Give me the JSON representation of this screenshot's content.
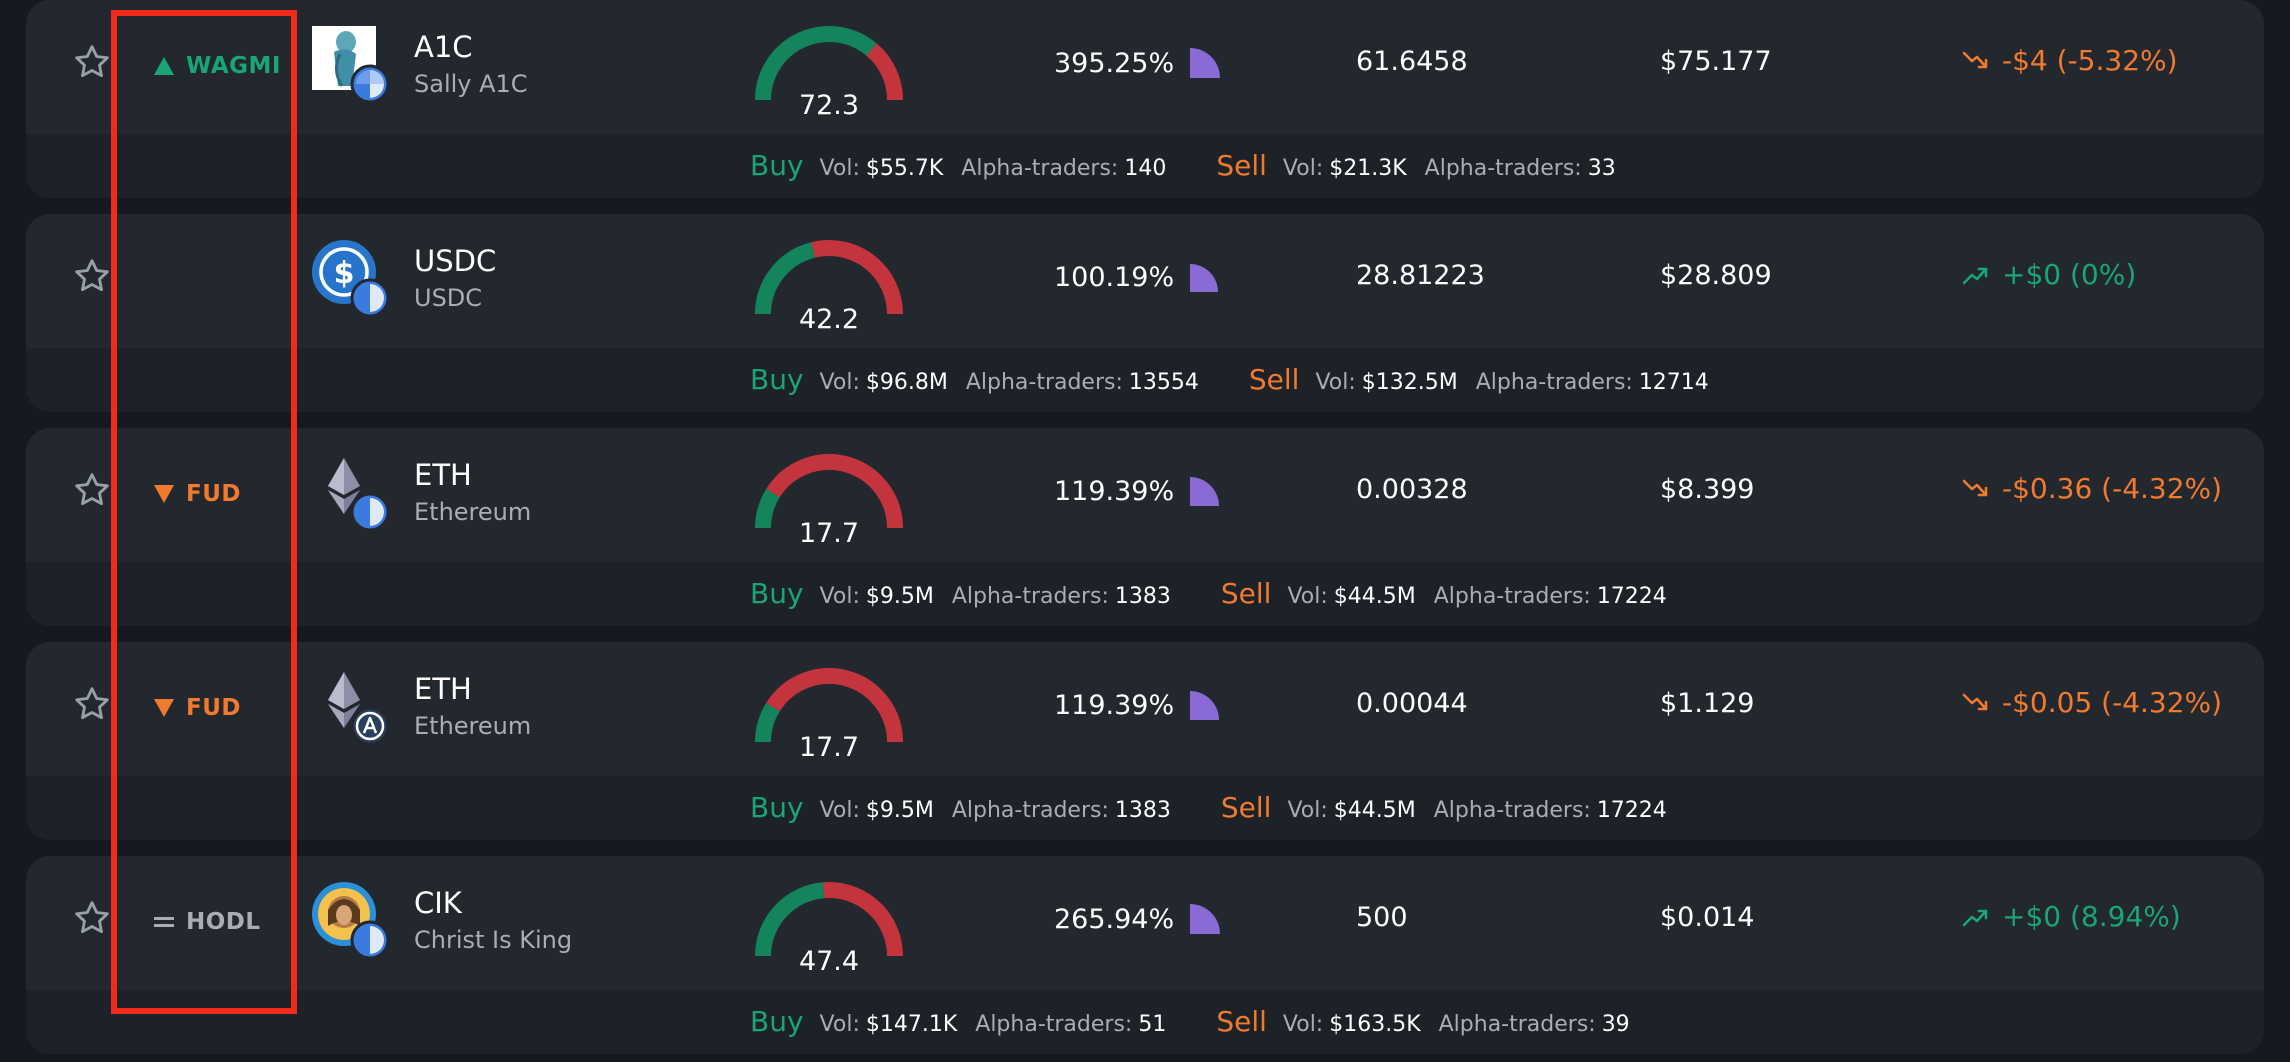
{
  "colors": {
    "green": "#1aa576",
    "orange": "#f07a2e",
    "gauge_green": "#13845c",
    "gauge_red": "#c3343d",
    "pie_purple": "#8a6bd6",
    "highlight": "#f12b1a"
  },
  "rows": [
    {
      "signal": {
        "label": "WAGMI",
        "kind": "up",
        "icon": "triangle-up-icon"
      },
      "coin": {
        "symbol": "A1C",
        "name": "Sally A1C",
        "icon": "sally-avatar-icon"
      },
      "score": {
        "value": "72.3",
        "level": 0.723
      },
      "percent": {
        "value": "395.25%",
        "pie_fraction": 0.25
      },
      "quantity": "61.6458",
      "price": "$75.177",
      "change": {
        "text": "-$4 (-5.32%)",
        "direction": "down"
      },
      "buy": {
        "label": "Buy",
        "vol_label": "Vol:",
        "vol": "$55.7K",
        "traders_label": "Alpha-traders:",
        "traders": "140"
      },
      "sell": {
        "label": "Sell",
        "vol_label": "Vol:",
        "vol": "$21.3K",
        "traders_label": "Alpha-traders:",
        "traders": "33"
      }
    },
    {
      "signal": {
        "label": "",
        "kind": "none",
        "icon": ""
      },
      "coin": {
        "symbol": "USDC",
        "name": "USDC",
        "icon": "usdc-icon"
      },
      "score": {
        "value": "42.2",
        "level": 0.422
      },
      "percent": {
        "value": "100.19%",
        "pie_fraction": 0.2
      },
      "quantity": "28.81223",
      "price": "$28.809",
      "change": {
        "text": "+$0 (0%)",
        "direction": "up"
      },
      "buy": {
        "label": "Buy",
        "vol_label": "Vol:",
        "vol": "$96.8M",
        "traders_label": "Alpha-traders:",
        "traders": "13554"
      },
      "sell": {
        "label": "Sell",
        "vol_label": "Vol:",
        "vol": "$132.5M",
        "traders_label": "Alpha-traders:",
        "traders": "12714"
      }
    },
    {
      "signal": {
        "label": "FUD",
        "kind": "down",
        "icon": "triangle-down-icon"
      },
      "coin": {
        "symbol": "ETH",
        "name": "Ethereum",
        "icon": "ethereum-icon"
      },
      "score": {
        "value": "17.7",
        "level": 0.177
      },
      "percent": {
        "value": "119.39%",
        "pie_fraction": 0.22
      },
      "quantity": "0.00328",
      "price": "$8.399",
      "change": {
        "text": "-$0.36 (-4.32%)",
        "direction": "down"
      },
      "buy": {
        "label": "Buy",
        "vol_label": "Vol:",
        "vol": "$9.5M",
        "traders_label": "Alpha-traders:",
        "traders": "1383"
      },
      "sell": {
        "label": "Sell",
        "vol_label": "Vol:",
        "vol": "$44.5M",
        "traders_label": "Alpha-traders:",
        "traders": "17224"
      }
    },
    {
      "signal": {
        "label": "FUD",
        "kind": "down",
        "icon": "triangle-down-icon"
      },
      "coin": {
        "symbol": "ETH",
        "name": "Ethereum",
        "icon": "ethereum-icon"
      },
      "score": {
        "value": "17.7",
        "level": 0.177
      },
      "percent": {
        "value": "119.39%",
        "pie_fraction": 0.22
      },
      "quantity": "0.00044",
      "price": "$1.129",
      "change": {
        "text": "-$0.05 (-4.32%)",
        "direction": "down"
      },
      "buy": {
        "label": "Buy",
        "vol_label": "Vol:",
        "vol": "$9.5M",
        "traders_label": "Alpha-traders:",
        "traders": "1383"
      },
      "sell": {
        "label": "Sell",
        "vol_label": "Vol:",
        "vol": "$44.5M",
        "traders_label": "Alpha-traders:",
        "traders": "17224"
      }
    },
    {
      "signal": {
        "label": "HODL",
        "kind": "neutral",
        "icon": "equals-icon"
      },
      "coin": {
        "symbol": "CIK",
        "name": "Christ Is King",
        "icon": "cik-avatar-icon"
      },
      "score": {
        "value": "47.4",
        "level": 0.474
      },
      "percent": {
        "value": "265.94%",
        "pie_fraction": 0.25
      },
      "quantity": "500",
      "price": "$0.014",
      "change": {
        "text": "+$0 (8.94%)",
        "direction": "up"
      },
      "buy": {
        "label": "Buy",
        "vol_label": "Vol:",
        "vol": "$147.1K",
        "traders_label": "Alpha-traders:",
        "traders": "51"
      },
      "sell": {
        "label": "Sell",
        "vol_label": "Vol:",
        "vol": "$163.5K",
        "traders_label": "Alpha-traders:",
        "traders": "39"
      }
    }
  ]
}
